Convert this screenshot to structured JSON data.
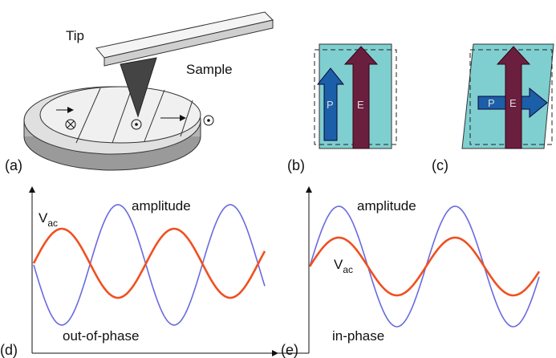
{
  "panel_a": {
    "label": "(a)",
    "tip": "Tip",
    "sample": "Sample"
  },
  "panel_b": {
    "label": "(b)",
    "p": "P",
    "e": "E"
  },
  "panel_c": {
    "label": "(c)",
    "p": "P",
    "e": "E"
  },
  "panel_d": {
    "label": "(d)",
    "vac": {
      "main": "V",
      "sub": "ac"
    },
    "amplitude": "amplitude",
    "phase": "out-of-phase"
  },
  "panel_e": {
    "label": "(e)",
    "vac": {
      "main": "V",
      "sub": "ac"
    },
    "amplitude": "amplitude",
    "phase": "in-phase"
  }
}
